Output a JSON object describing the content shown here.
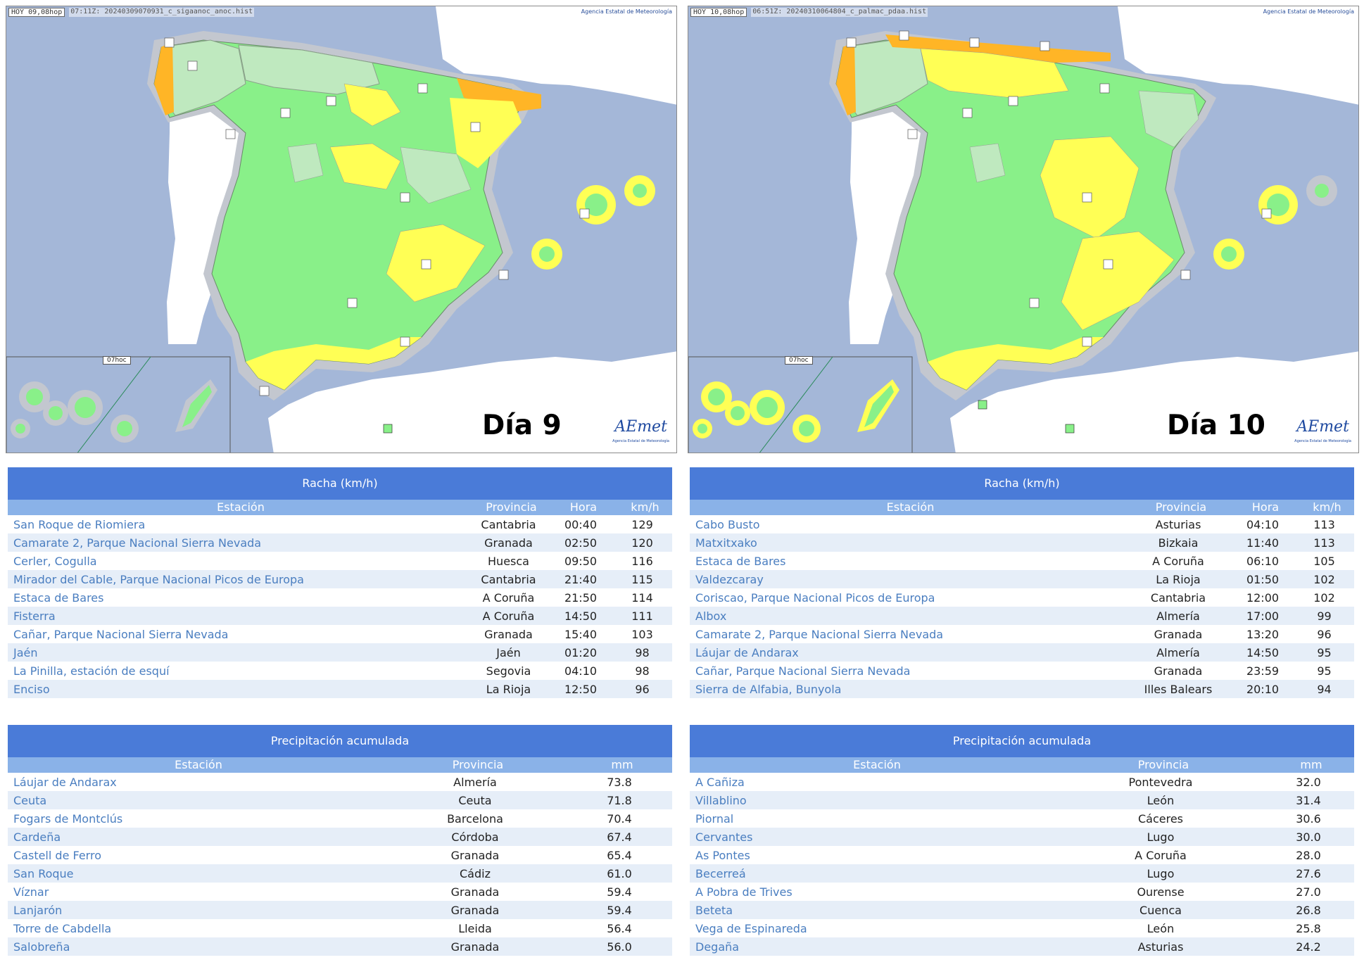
{
  "maps": [
    {
      "header_hoy": "HOY 09,08hop",
      "header_file": "07:11Z: 20240309070931_c_sigaanoc_anoc.hist",
      "credit": "Agencia Estatal de Meteorología",
      "inset_label": "07hoc",
      "day_label": "Día 9",
      "logo": "AEmet",
      "logo_sub": "Agencia Estatal de Meteorología"
    },
    {
      "header_hoy": "HOY 10,08hop",
      "header_file": "06:51Z: 20240310064804_c_palmac_pdaa.hist",
      "credit": "Agencia Estatal de Meteorología",
      "inset_label": "07hoc",
      "day_label": "Día 10",
      "logo": "AEmet",
      "logo_sub": "Agencia Estatal de Meteorología"
    }
  ],
  "colors": {
    "sea": "#a4b7d8",
    "land_outside": "#ffffff",
    "level_green": "#89f089",
    "level_light": "#bfe9bf",
    "level_yellow": "#ffff55",
    "level_orange": "#ffb526",
    "table_caption": "#4a7bd8",
    "table_header": "#8ab2e8",
    "link": "#4a7ec0"
  },
  "racha_tables": [
    {
      "title": "Racha (km/h)",
      "headers": [
        "Estación",
        "Provincia",
        "Hora",
        "km/h"
      ],
      "rows": [
        [
          "San Roque de Riomiera",
          "Cantabria",
          "00:40",
          "129"
        ],
        [
          "Camarate 2, Parque Nacional Sierra Nevada",
          "Granada",
          "02:50",
          "120"
        ],
        [
          "Cerler, Cogulla",
          "Huesca",
          "09:50",
          "116"
        ],
        [
          "Mirador del Cable, Parque Nacional Picos de Europa",
          "Cantabria",
          "21:40",
          "115"
        ],
        [
          "Estaca de Bares",
          "A Coruña",
          "21:50",
          "114"
        ],
        [
          "Fisterra",
          "A Coruña",
          "14:50",
          "111"
        ],
        [
          "Cañar, Parque Nacional Sierra Nevada",
          "Granada",
          "15:40",
          "103"
        ],
        [
          "Jaén",
          "Jaén",
          "01:20",
          "98"
        ],
        [
          "La Pinilla, estación de esquí",
          "Segovia",
          "04:10",
          "98"
        ],
        [
          "Enciso",
          "La Rioja",
          "12:50",
          "96"
        ]
      ]
    },
    {
      "title": "Racha (km/h)",
      "headers": [
        "Estación",
        "Provincia",
        "Hora",
        "km/h"
      ],
      "rows": [
        [
          "Cabo Busto",
          "Asturias",
          "04:10",
          "113"
        ],
        [
          "Matxitxako",
          "Bizkaia",
          "11:40",
          "113"
        ],
        [
          "Estaca de Bares",
          "A Coruña",
          "06:10",
          "105"
        ],
        [
          "Valdezcaray",
          "La Rioja",
          "01:50",
          "102"
        ],
        [
          "Coriscao, Parque Nacional Picos de Europa",
          "Cantabria",
          "12:00",
          "102"
        ],
        [
          "Albox",
          "Almería",
          "17:00",
          "99"
        ],
        [
          "Camarate 2, Parque Nacional Sierra Nevada",
          "Granada",
          "13:20",
          "96"
        ],
        [
          "Láujar de Andarax",
          "Almería",
          "14:50",
          "95"
        ],
        [
          "Cañar, Parque Nacional Sierra Nevada",
          "Granada",
          "23:59",
          "95"
        ],
        [
          "Sierra de Alfabia, Bunyola",
          "Illes Balears",
          "20:10",
          "94"
        ]
      ]
    }
  ],
  "precip_tables": [
    {
      "title": "Precipitación acumulada",
      "headers": [
        "Estación",
        "Provincia",
        "mm"
      ],
      "rows": [
        [
          "Láujar de Andarax",
          "Almería",
          "73.8"
        ],
        [
          "Ceuta",
          "Ceuta",
          "71.8"
        ],
        [
          "Fogars de Montclús",
          "Barcelona",
          "70.4"
        ],
        [
          "Cardeña",
          "Córdoba",
          "67.4"
        ],
        [
          "Castell de Ferro",
          "Granada",
          "65.4"
        ],
        [
          "San Roque",
          "Cádiz",
          "61.0"
        ],
        [
          "Víznar",
          "Granada",
          "59.4"
        ],
        [
          "Lanjarón",
          "Granada",
          "59.4"
        ],
        [
          "Torre de Cabdella",
          "Lleida",
          "56.4"
        ],
        [
          "Salobreña",
          "Granada",
          "56.0"
        ]
      ]
    },
    {
      "title": "Precipitación acumulada",
      "headers": [
        "Estación",
        "Provincia",
        "mm"
      ],
      "rows": [
        [
          "A Cañiza",
          "Pontevedra",
          "32.0"
        ],
        [
          "Villablino",
          "León",
          "31.4"
        ],
        [
          "Piornal",
          "Cáceres",
          "30.6"
        ],
        [
          "Cervantes",
          "Lugo",
          "30.0"
        ],
        [
          "As Pontes",
          "A Coruña",
          "28.0"
        ],
        [
          "Becerreá",
          "Lugo",
          "27.6"
        ],
        [
          "A Pobra de Trives",
          "Ourense",
          "27.0"
        ],
        [
          "Beteta",
          "Cuenca",
          "26.8"
        ],
        [
          "Vega de Espinareda",
          "León",
          "25.8"
        ],
        [
          "Degaña",
          "Asturias",
          "24.2"
        ]
      ]
    }
  ]
}
